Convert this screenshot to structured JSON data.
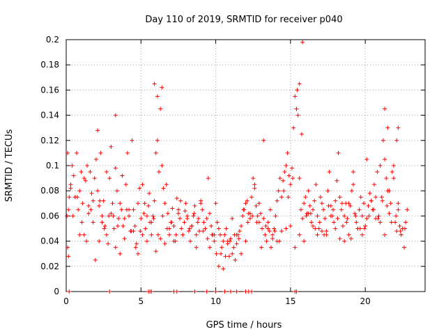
{
  "chart_data": {
    "type": "scatter",
    "title": "Day 110 of 2019, SRMTID for receiver p040",
    "xlabel": "GPS time / hours",
    "ylabel": "SRMTID / TECUs",
    "xlim": [
      0,
      24
    ],
    "ylim": [
      0,
      0.2
    ],
    "xticks": [
      0,
      5,
      10,
      15,
      20
    ],
    "xtick_labels": [
      "0",
      "5",
      "10",
      "15",
      "20"
    ],
    "yticks": [
      0,
      0.02,
      0.04,
      0.06,
      0.08,
      0.1,
      0.12,
      0.14,
      0.16,
      0.18,
      0.2
    ],
    "ytick_labels": [
      "0",
      "0.02",
      "0.04",
      "0.06",
      "0.08",
      "0.1",
      "0.12",
      "0.14",
      "0.16",
      "0.18",
      "0.2"
    ],
    "grid": true,
    "marker": "plus",
    "color": "#ff0000",
    "series": [
      {
        "name": "SRMTID",
        "x": [
          0.05,
          0.1,
          0.15,
          0.2,
          0.3,
          0.4,
          0.5,
          0.6,
          0.7,
          0.8,
          0.9,
          1.0,
          1.1,
          1.2,
          1.3,
          1.4,
          1.5,
          1.6,
          1.7,
          1.8,
          1.9,
          2.0,
          2.1,
          2.2,
          2.3,
          2.4,
          2.5,
          2.6,
          2.7,
          2.8,
          2.9,
          3.0,
          3.1,
          3.2,
          3.3,
          3.4,
          3.5,
          3.6,
          3.7,
          3.8,
          3.9,
          4.0,
          4.1,
          4.2,
          4.3,
          4.4,
          4.5,
          4.6,
          4.7,
          4.8,
          4.9,
          5.0,
          5.1,
          5.2,
          5.3,
          5.4,
          5.5,
          5.6,
          5.7,
          5.8,
          5.9,
          6.0,
          6.1,
          6.2,
          6.3,
          6.4,
          6.5,
          6.6,
          6.7,
          6.8,
          6.9,
          7.0,
          7.1,
          7.2,
          7.3,
          7.4,
          7.5,
          7.6,
          7.7,
          7.8,
          7.9,
          8.0,
          8.1,
          8.2,
          8.3,
          8.4,
          8.5,
          8.6,
          8.7,
          8.8,
          8.9,
          9.0,
          9.1,
          9.2,
          9.3,
          9.4,
          9.5,
          9.6,
          9.7,
          9.8,
          9.9,
          10.0,
          10.1,
          10.2,
          10.3,
          10.4,
          10.5,
          10.6,
          10.7,
          10.8,
          10.9,
          11.0,
          11.1,
          11.2,
          11.3,
          11.4,
          11.5,
          11.6,
          11.7,
          11.8,
          11.9,
          12.0,
          12.1,
          12.2,
          12.3,
          12.4,
          12.5,
          12.6,
          12.7,
          12.8,
          12.9,
          13.0,
          13.1,
          13.2,
          13.3,
          13.4,
          13.5,
          13.6,
          13.7,
          13.8,
          13.9,
          14.0,
          14.1,
          14.2,
          14.3,
          14.4,
          14.5,
          14.6,
          14.7,
          14.8,
          14.9,
          15.0,
          15.1,
          15.2,
          15.3,
          15.4,
          15.5,
          15.6,
          15.7,
          15.8,
          15.9,
          16.0,
          16.1,
          16.2,
          16.3,
          16.4,
          16.5,
          16.6,
          16.7,
          16.8,
          16.9,
          17.0,
          17.1,
          17.2,
          17.3,
          17.4,
          17.5,
          17.6,
          17.7,
          17.8,
          17.9,
          18.0,
          18.1,
          18.2,
          18.3,
          18.4,
          18.5,
          18.6,
          18.7,
          18.8,
          18.9,
          19.0,
          19.1,
          19.2,
          19.3,
          19.4,
          19.5,
          19.6,
          19.7,
          19.8,
          19.9,
          20.0,
          20.1,
          20.2,
          20.3,
          20.4,
          20.5,
          20.6,
          20.7,
          20.8,
          20.9,
          21.0,
          21.1,
          21.2,
          21.3,
          21.4,
          21.5,
          21.6,
          21.7,
          21.8,
          21.9,
          22.0,
          22.1,
          22.2,
          22.3,
          22.4,
          22.5,
          22.6,
          22.7,
          22.8,
          0.3,
          0.6,
          0.9,
          1.2,
          1.5,
          1.8,
          2.1,
          2.4,
          2.7,
          3.0,
          3.3,
          3.6,
          3.9,
          4.2,
          4.5,
          4.8,
          5.1,
          5.4,
          5.7,
          6.0,
          6.3,
          6.6,
          6.9,
          7.2,
          7.5,
          7.8,
          8.1,
          8.4,
          8.7,
          9.0,
          9.3,
          9.6,
          9.9,
          10.2,
          10.5,
          10.8,
          11.1,
          11.4,
          11.7,
          12.0,
          12.3,
          12.6,
          12.9,
          13.2,
          13.5,
          13.8,
          14.1,
          14.4,
          14.7,
          15.0,
          15.3,
          15.6,
          15.9,
          16.2,
          16.5,
          16.8,
          17.1,
          17.4,
          17.7,
          18.0,
          18.3,
          18.6,
          18.9,
          19.2,
          19.5,
          19.8,
          20.1,
          20.4,
          20.7,
          21.0,
          21.3,
          21.6,
          21.9,
          22.2,
          22.5,
          0.15,
          0.45,
          0.75,
          1.05,
          1.35,
          1.65,
          1.95,
          2.25,
          2.55,
          2.85,
          3.15,
          3.45,
          3.75,
          4.05,
          4.35,
          4.65,
          4.95,
          5.25,
          5.55,
          5.85,
          6.15,
          6.45,
          6.75,
          7.05,
          7.35,
          7.65,
          7.95,
          8.25,
          8.55,
          8.85,
          9.15,
          9.45,
          9.75,
          10.05,
          10.35,
          10.65,
          10.95,
          11.25,
          11.55,
          11.85,
          12.15,
          12.45,
          12.75,
          13.05,
          13.35,
          13.65,
          13.95,
          14.25,
          14.55,
          14.85,
          15.15,
          15.45,
          15.75,
          16.05,
          16.35,
          16.65,
          16.95,
          17.25,
          17.55,
          17.85,
          18.15,
          18.45,
          18.75,
          19.05,
          19.35,
          19.65,
          19.95,
          20.25,
          20.55,
          20.85,
          21.15,
          21.45,
          21.75,
          22.05,
          22.35,
          22.65,
          2.2,
          3.3,
          5.9,
          6.1,
          6.4,
          15.4,
          15.6,
          15.8,
          21.3,
          21.5,
          22.1,
          22.2,
          0.1,
          0.2,
          2.9,
          5.5,
          5.6,
          5.7,
          7.2,
          7.4,
          8.6,
          9.4,
          10.0,
          10.6,
          11.0,
          11.4,
          12.0,
          12.2,
          12.4,
          15.3,
          15.4
        ],
        "y": [
          0.06,
          0.035,
          0.028,
          0.075,
          0.085,
          0.1,
          0.092,
          0.075,
          0.11,
          0.065,
          0.08,
          0.095,
          0.07,
          0.045,
          0.088,
          0.1,
          0.062,
          0.095,
          0.078,
          0.055,
          0.09,
          0.105,
          0.128,
          0.068,
          0.11,
          0.06,
          0.072,
          0.052,
          0.045,
          0.038,
          0.09,
          0.115,
          0.07,
          0.05,
          0.098,
          0.08,
          0.058,
          0.03,
          0.065,
          0.052,
          0.042,
          0.085,
          0.11,
          0.06,
          0.048,
          0.12,
          0.065,
          0.052,
          0.038,
          0.07,
          0.082,
          0.058,
          0.045,
          0.062,
          0.05,
          0.04,
          0.068,
          0.055,
          0.045,
          0.06,
          0.072,
          0.11,
          0.12,
          0.095,
          0.145,
          0.1,
          0.082,
          0.07,
          0.085,
          0.062,
          0.045,
          0.055,
          0.066,
          0.052,
          0.04,
          0.074,
          0.062,
          0.058,
          0.05,
          0.045,
          0.055,
          0.07,
          0.058,
          0.048,
          0.04,
          0.052,
          0.06,
          0.068,
          0.045,
          0.055,
          0.048,
          0.072,
          0.065,
          0.055,
          0.05,
          0.058,
          0.09,
          0.062,
          0.052,
          0.045,
          0.04,
          0.07,
          0.055,
          0.05,
          0.045,
          0.035,
          0.04,
          0.045,
          0.05,
          0.038,
          0.028,
          0.042,
          0.03,
          0.035,
          0.025,
          0.038,
          0.045,
          0.048,
          0.052,
          0.06,
          0.065,
          0.07,
          0.072,
          0.062,
          0.058,
          0.075,
          0.09,
          0.085,
          0.068,
          0.06,
          0.055,
          0.062,
          0.05,
          0.058,
          0.045,
          0.04,
          0.055,
          0.048,
          0.035,
          0.045,
          0.05,
          0.06,
          0.072,
          0.08,
          0.09,
          0.075,
          0.088,
          0.095,
          0.1,
          0.11,
          0.092,
          0.085,
          0.098,
          0.13,
          0.155,
          0.145,
          0.14,
          0.09,
          0.065,
          0.058,
          0.07,
          0.075,
          0.062,
          0.08,
          0.068,
          0.055,
          0.065,
          0.072,
          0.085,
          0.06,
          0.05,
          0.075,
          0.07,
          0.065,
          0.058,
          0.048,
          0.08,
          0.095,
          0.068,
          0.06,
          0.055,
          0.072,
          0.088,
          0.11,
          0.075,
          0.065,
          0.052,
          0.06,
          0.07,
          0.058,
          0.045,
          0.068,
          0.08,
          0.095,
          0.062,
          0.055,
          0.05,
          0.065,
          0.075,
          0.06,
          0.07,
          0.052,
          0.058,
          0.068,
          0.078,
          0.072,
          0.065,
          0.085,
          0.075,
          0.095,
          0.06,
          0.055,
          0.075,
          0.12,
          0.105,
          0.09,
          0.08,
          0.062,
          0.07,
          0.095,
          0.1,
          0.055,
          0.048,
          0.065,
          0.052,
          0.045,
          0.05,
          0.035,
          0.055,
          0.065,
          0.082,
          0.075,
          0.045,
          0.09,
          0.068,
          0.072,
          0.08,
          0.055,
          0.095,
          0.062,
          0.035,
          0.07,
          0.058,
          0.065,
          0.048,
          0.03,
          0.085,
          0.06,
          0.055,
          0.032,
          0.042,
          0.038,
          0.05,
          0.04,
          0.065,
          0.045,
          0.06,
          0.052,
          0.035,
          0.07,
          0.05,
          0.035,
          0.045,
          0.02,
          0.018,
          0.04,
          0.058,
          0.045,
          0.03,
          0.04,
          0.062,
          0.082,
          0.07,
          0.12,
          0.05,
          0.042,
          0.04,
          0.048,
          0.05,
          0.052,
          0.035,
          0.045,
          0.04,
          0.062,
          0.052,
          0.045,
          0.048,
          0.045,
          0.06,
          0.05,
          0.042,
          0.04,
          0.07,
          0.085,
          0.05,
          0.045,
          0.105,
          0.072,
          0.058,
          0.1,
          0.045,
          0.08,
          0.09,
          0.07,
          0.05,
          0.065,
          0.06,
          0.075,
          0.055,
          0.04,
          0.065,
          0.025,
          0.072,
          0.05,
          0.06,
          0.06,
          0.052,
          0.092,
          0.065,
          0.048,
          0.035,
          0.048,
          0.07,
          0.078,
          0.058,
          0.045,
          0.06,
          0.05,
          0.055,
          0.045,
          0.072,
          0.064,
          0.05,
          0.062,
          0.058,
          0.048,
          0.042,
          0.045,
          0.03,
          0.03,
          0.028,
          0.04,
          0.045,
          0.042,
          0.065,
          0.055,
          0.06,
          0.055,
          0.035,
          0.052,
          0.065,
          0.048,
          0.04,
          0.08,
          0.075,
          0.09,
          0.16,
          0.125,
          0.06,
          0.062,
          0.05,
          0.055,
          0.045,
          0.068,
          0.065,
          0.058,
          0.07,
          0.055,
          0.042,
          0.06,
          0.05,
          0.05,
          0.06,
          0.065,
          0.058,
          0.072,
          0.068,
          0.055,
          0.06,
          0.048,
          0.05,
          0.04,
          0.14,
          0.165,
          0.155,
          0.162,
          0.145,
          0.165,
          0.198,
          0.145,
          0.13,
          0.12,
          0.13,
          0.11,
          0,
          0,
          0,
          0,
          0,
          0,
          0,
          0,
          0,
          0,
          0,
          0,
          0,
          0,
          0,
          0,
          0,
          0
        ]
      }
    ]
  }
}
